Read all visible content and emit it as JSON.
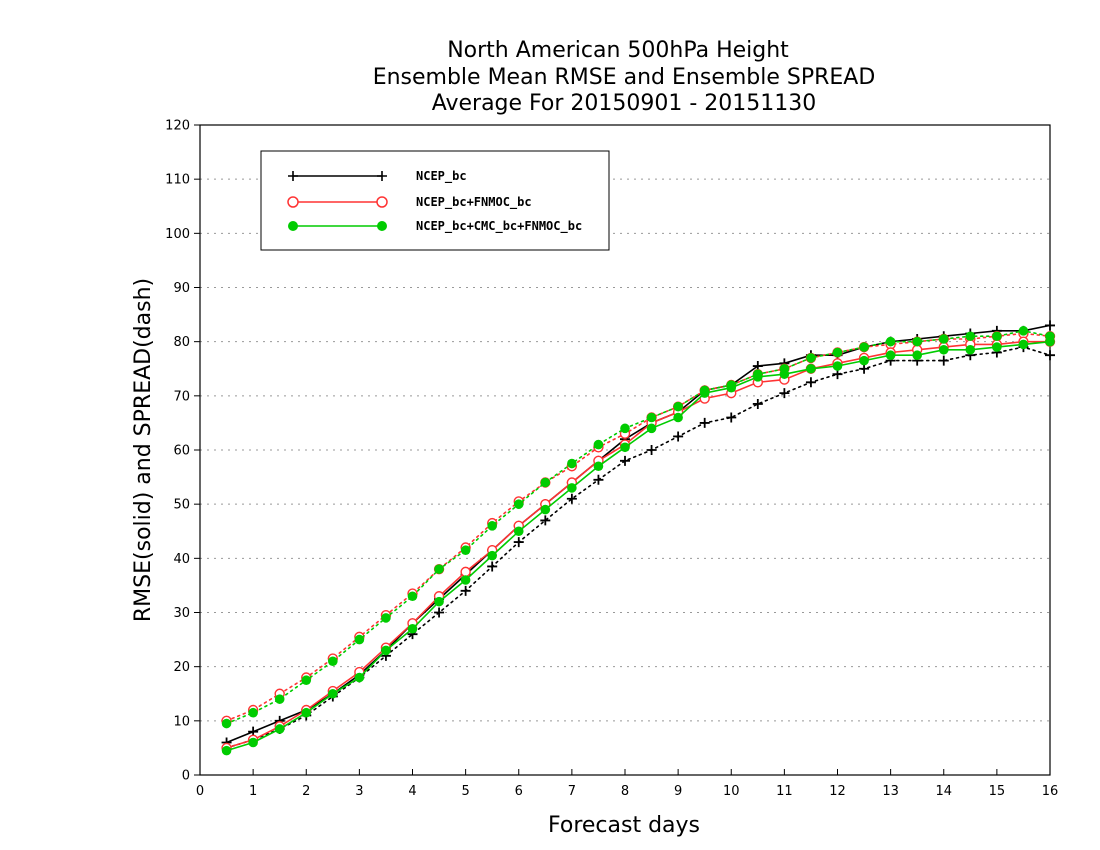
{
  "chart_data": {
    "type": "line",
    "title": [
      "North American 500hPa Height",
      "Ensemble Mean RMSE and Ensemble SPREAD",
      "Average For 20150901 - 20151130"
    ],
    "xlabel": "Forecast days",
    "ylabel": "RMSE(solid) and SPREAD(dash)",
    "xlim": [
      0,
      16
    ],
    "ylim": [
      0,
      120
    ],
    "x_ticks": [
      "0",
      "1",
      "2",
      "3",
      "4",
      "5",
      "6",
      "7",
      "8",
      "9",
      "10",
      "11",
      "12",
      "13",
      "14",
      "15",
      "16"
    ],
    "y_ticks": [
      "0",
      "10",
      "20",
      "30",
      "40",
      "50",
      "60",
      "70",
      "80",
      "90",
      "100",
      "110",
      "120"
    ],
    "grid": "horizontal dotted",
    "legend_position": "top-left",
    "x": [
      0.5,
      1,
      1.5,
      2,
      2.5,
      3,
      3.5,
      4,
      4.5,
      5,
      5.5,
      6,
      6.5,
      7,
      7.5,
      8,
      8.5,
      9,
      9.5,
      10,
      10.5,
      11,
      11.5,
      12,
      12.5,
      13,
      13.5,
      14,
      14.5,
      15,
      15.5,
      16
    ],
    "series": [
      {
        "name": "NCEP_bc",
        "color": "#000000",
        "marker": "plus",
        "rmse": [
          6,
          8,
          10,
          12,
          15,
          18.5,
          23,
          28,
          32.5,
          37,
          41.5,
          46,
          50,
          54,
          58,
          62,
          65,
          67,
          71,
          72,
          75.5,
          76,
          77.5,
          77.5,
          79,
          80,
          80.5,
          81,
          81.5,
          82,
          82,
          83
        ],
        "spread": [
          5,
          6.5,
          8.5,
          11,
          14.5,
          18,
          22,
          26,
          30,
          34,
          38.5,
          43,
          47,
          51,
          54.5,
          58,
          60,
          62.5,
          65,
          66,
          68.5,
          70.5,
          72.5,
          74,
          75,
          76.5,
          76.5,
          76.5,
          77.5,
          78,
          79,
          77.5
        ]
      },
      {
        "name": "NCEP_bc+FNMOC_bc",
        "color": "#ff3333",
        "marker": "open-circle",
        "rmse": [
          5,
          6.5,
          9,
          12,
          15.5,
          19,
          23.5,
          28,
          33,
          37.5,
          41.5,
          46,
          50,
          54,
          58,
          61,
          65,
          67,
          69.5,
          70.5,
          72.5,
          73,
          75,
          76,
          77,
          78,
          78.5,
          79,
          79.5,
          79.5,
          80,
          80
        ],
        "spread": [
          10,
          12,
          15,
          18,
          21.5,
          25.5,
          29.5,
          33.5,
          38,
          42,
          46.5,
          50.5,
          54,
          57,
          60.5,
          63,
          66,
          68,
          71,
          72,
          74,
          75,
          77,
          78,
          79,
          79.5,
          80,
          80.5,
          80.5,
          81,
          81.5,
          81
        ]
      },
      {
        "name": "NCEP_bc+CMC_bc+FNMOC_bc",
        "color": "#00cc00",
        "marker": "filled-circle",
        "rmse": [
          4.5,
          6,
          8.5,
          11.5,
          15,
          18,
          23,
          27,
          32,
          36,
          40.5,
          45,
          49,
          53,
          57,
          60.5,
          64,
          66,
          70.5,
          71.5,
          73.5,
          74,
          75,
          75.5,
          76.5,
          77.5,
          77.5,
          78.5,
          78.5,
          79,
          79.5,
          80
        ],
        "spread": [
          9.5,
          11.5,
          14,
          17.5,
          21,
          25,
          29,
          33,
          38,
          41.5,
          46,
          50,
          54,
          57.5,
          61,
          64,
          66,
          68,
          71,
          72,
          74,
          75,
          77,
          78,
          79,
          80,
          80,
          80.5,
          81,
          81,
          82,
          81
        ]
      }
    ]
  }
}
